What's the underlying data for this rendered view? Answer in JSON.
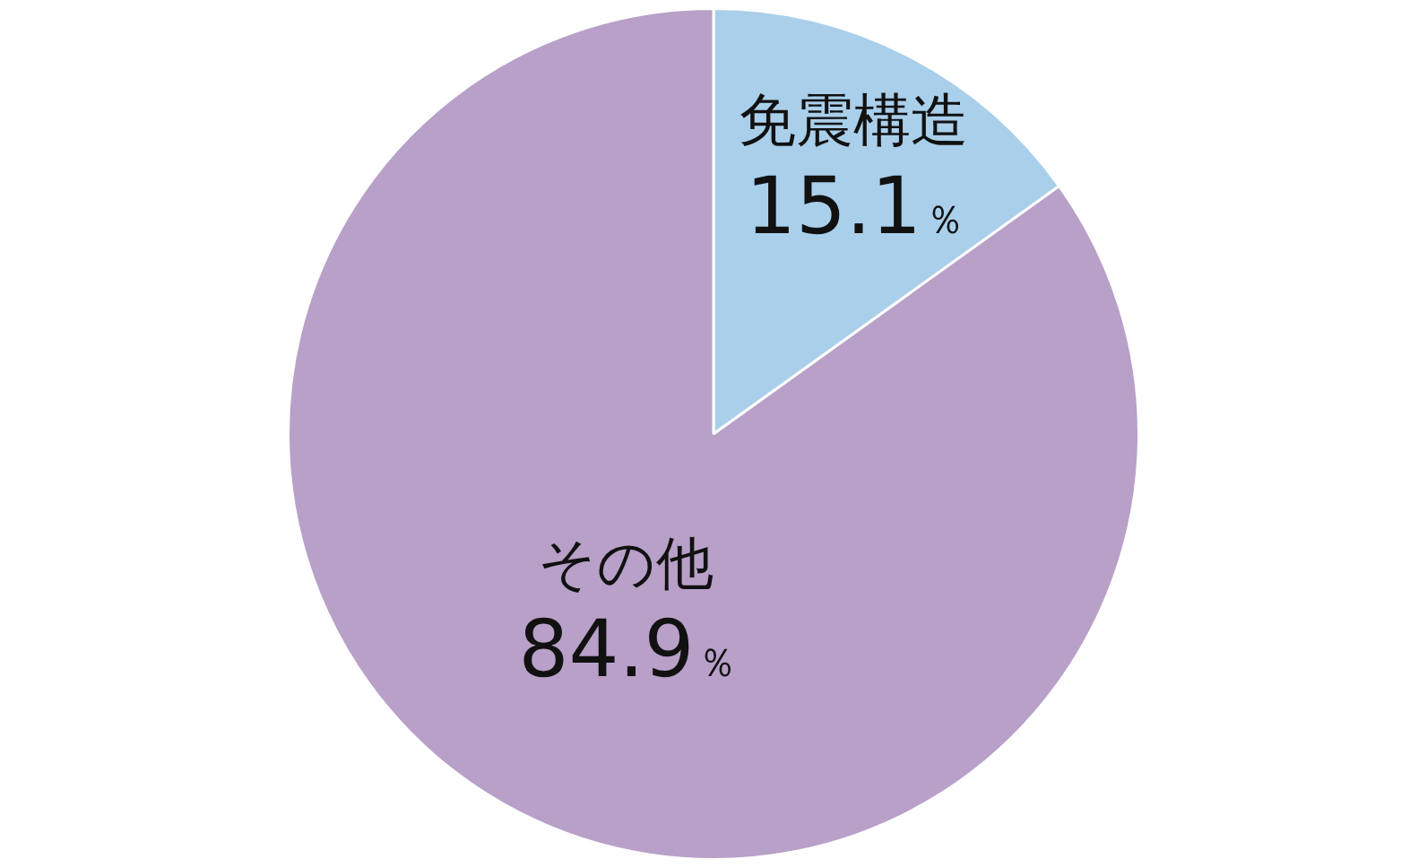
{
  "chart_data": {
    "type": "pie",
    "categories": [
      "免震構造",
      "その他"
    ],
    "values": [
      15.1,
      84.9
    ],
    "colors": [
      "#a9cfeb",
      "#b8a0c9"
    ],
    "value_labels": [
      "15.1％",
      "84.9％"
    ],
    "legend": false
  }
}
